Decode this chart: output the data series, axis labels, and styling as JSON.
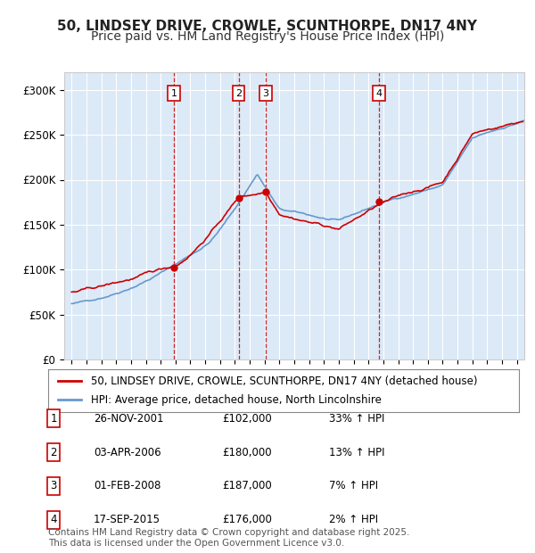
{
  "title": "50, LINDSEY DRIVE, CROWLE, SCUNTHORPE, DN17 4NY",
  "subtitle": "Price paid vs. HM Land Registry's House Price Index (HPI)",
  "ylim": [
    0,
    320000
  ],
  "yticks": [
    0,
    50000,
    100000,
    150000,
    200000,
    250000,
    300000
  ],
  "ytick_labels": [
    "£0",
    "£50K",
    "£100K",
    "£150K",
    "£200K",
    "£250K",
    "£300K"
  ],
  "background_color": "#ffffff",
  "plot_bg_color": "#dce9f7",
  "grid_color": "#ffffff",
  "red_line_color": "#cc0000",
  "blue_line_color": "#6699cc",
  "sale_dates_decimal": [
    2001.9,
    2006.25,
    2008.08,
    2015.71
  ],
  "sale_prices": [
    102000,
    180000,
    187000,
    176000
  ],
  "sale_labels": [
    "1",
    "2",
    "3",
    "4"
  ],
  "vline_color": "#cc0000",
  "legend_red_label": "50, LINDSEY DRIVE, CROWLE, SCUNTHORPE, DN17 4NY (detached house)",
  "legend_blue_label": "HPI: Average price, detached house, North Lincolnshire",
  "table_rows": [
    [
      "1",
      "26-NOV-2001",
      "£102,000",
      "33% ↑ HPI"
    ],
    [
      "2",
      "03-APR-2006",
      "£180,000",
      "13% ↑ HPI"
    ],
    [
      "3",
      "01-FEB-2008",
      "£187,000",
      "7% ↑ HPI"
    ],
    [
      "4",
      "17-SEP-2015",
      "£176,000",
      "2% ↑ HPI"
    ]
  ],
  "footer_text": "Contains HM Land Registry data © Crown copyright and database right 2025.\nThis data is licensed under the Open Government Licence v3.0.",
  "title_fontsize": 11,
  "subtitle_fontsize": 10,
  "tick_fontsize": 8.5,
  "legend_fontsize": 8.5,
  "table_fontsize": 8.5,
  "footer_fontsize": 7.5
}
